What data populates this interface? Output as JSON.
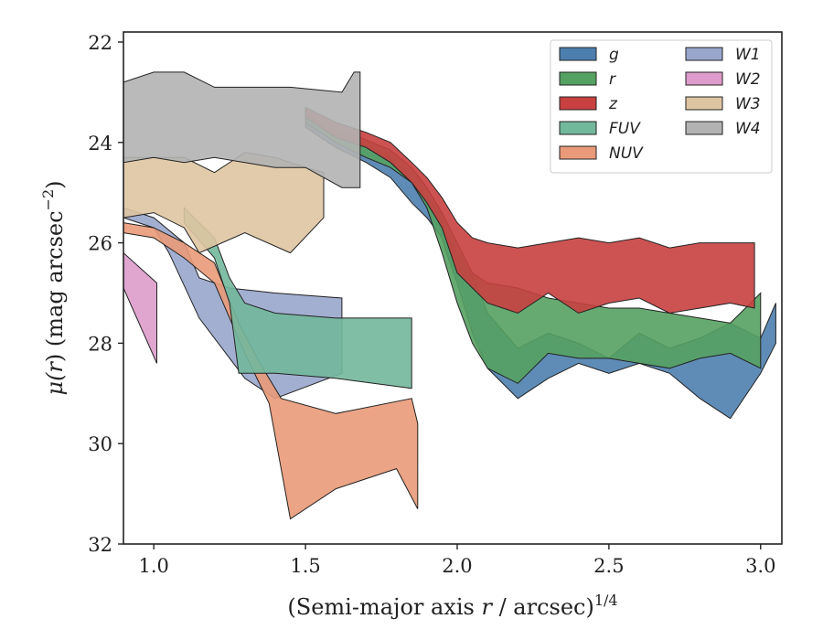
{
  "chart_data": {
    "type": "area",
    "xlabel": "(Semi-major axis r / arcsec)^{1/4}",
    "xlabel_parts": {
      "main": "(Semi-major axis ",
      "var": "r",
      "rest": " / arcsec)",
      "sup": "1/4"
    },
    "ylabel": "μ(r) (mag arcsec^{-2})",
    "ylabel_parts": {
      "mu": "μ(",
      "var": "r",
      "rest": ") (mag arcsec",
      "sup": "−2",
      "close": ")"
    },
    "xlim": [
      0.9,
      3.07
    ],
    "ylim": [
      32,
      21.8
    ],
    "y_inverted": true,
    "xticks": [
      1.0,
      1.5,
      2.0,
      2.5,
      3.0
    ],
    "xtick_labels": [
      "1.0",
      "1.5",
      "2.0",
      "2.5",
      "3.0"
    ],
    "yticks": [
      22,
      24,
      26,
      28,
      30,
      32
    ],
    "ytick_labels": [
      "22",
      "24",
      "26",
      "28",
      "30",
      "32"
    ],
    "grid": false,
    "legend_position": "top-right",
    "legend_columns": 2,
    "series": [
      {
        "name": "g",
        "label": "g",
        "color": "#4c7fae",
        "upper": [
          [
            1.5,
            23.4
          ],
          [
            1.6,
            23.8
          ],
          [
            1.7,
            24.05
          ],
          [
            1.78,
            24.3
          ],
          [
            1.85,
            24.8
          ],
          [
            1.9,
            25.1
          ],
          [
            1.95,
            25.4
          ],
          [
            1.97,
            25.9
          ],
          [
            2.0,
            26.2
          ],
          [
            2.05,
            26.6
          ],
          [
            2.1,
            27.4
          ],
          [
            2.2,
            28.1
          ],
          [
            2.3,
            27.8
          ],
          [
            2.4,
            28.0
          ],
          [
            2.5,
            28.3
          ],
          [
            2.6,
            27.8
          ],
          [
            2.7,
            28.1
          ],
          [
            2.8,
            27.9
          ],
          [
            2.9,
            27.6
          ],
          [
            3.0,
            27.9
          ],
          [
            3.05,
            27.2
          ]
        ],
        "lower": [
          [
            1.5,
            23.7
          ],
          [
            1.6,
            24.1
          ],
          [
            1.7,
            24.4
          ],
          [
            1.78,
            24.7
          ],
          [
            1.85,
            25.2
          ],
          [
            1.9,
            25.5
          ],
          [
            1.95,
            25.9
          ],
          [
            1.97,
            26.3
          ],
          [
            2.0,
            26.8
          ],
          [
            2.05,
            27.8
          ],
          [
            2.1,
            28.5
          ],
          [
            2.2,
            29.1
          ],
          [
            2.3,
            28.7
          ],
          [
            2.4,
            28.4
          ],
          [
            2.5,
            28.6
          ],
          [
            2.6,
            28.4
          ],
          [
            2.7,
            28.6
          ],
          [
            2.8,
            29.1
          ],
          [
            2.9,
            29.5
          ],
          [
            3.0,
            28.6
          ],
          [
            3.05,
            28.0
          ]
        ]
      },
      {
        "name": "r",
        "label": "r",
        "color": "#55a162",
        "upper": [
          [
            1.5,
            23.3
          ],
          [
            1.6,
            23.7
          ],
          [
            1.7,
            23.95
          ],
          [
            1.78,
            24.15
          ],
          [
            1.85,
            24.5
          ],
          [
            1.9,
            24.9
          ],
          [
            1.95,
            25.4
          ],
          [
            2.0,
            26.0
          ],
          [
            2.05,
            26.6
          ],
          [
            2.1,
            26.8
          ],
          [
            2.2,
            26.9
          ],
          [
            2.3,
            27.1
          ],
          [
            2.4,
            27.2
          ],
          [
            2.5,
            27.3
          ],
          [
            2.6,
            27.3
          ],
          [
            2.7,
            27.4
          ],
          [
            2.8,
            27.5
          ],
          [
            2.9,
            27.6
          ],
          [
            3.0,
            27.0
          ]
        ],
        "lower": [
          [
            1.5,
            23.6
          ],
          [
            1.6,
            24.0
          ],
          [
            1.7,
            24.3
          ],
          [
            1.78,
            24.5
          ],
          [
            1.85,
            24.8
          ],
          [
            1.9,
            25.3
          ],
          [
            1.95,
            26.2
          ],
          [
            2.0,
            27.2
          ],
          [
            2.05,
            28.0
          ],
          [
            2.1,
            28.5
          ],
          [
            2.2,
            28.8
          ],
          [
            2.3,
            28.2
          ],
          [
            2.4,
            28.3
          ],
          [
            2.5,
            28.3
          ],
          [
            2.6,
            28.4
          ],
          [
            2.7,
            28.5
          ],
          [
            2.8,
            28.3
          ],
          [
            2.9,
            28.2
          ],
          [
            3.0,
            28.5
          ]
        ]
      },
      {
        "name": "z",
        "label": "z",
        "color": "#c84040",
        "upper": [
          [
            1.5,
            23.3
          ],
          [
            1.6,
            23.6
          ],
          [
            1.7,
            23.8
          ],
          [
            1.78,
            24.0
          ],
          [
            1.85,
            24.4
          ],
          [
            1.9,
            24.7
          ],
          [
            1.95,
            25.1
          ],
          [
            2.0,
            25.6
          ],
          [
            2.05,
            25.9
          ],
          [
            2.1,
            26.0
          ],
          [
            2.2,
            26.1
          ],
          [
            2.3,
            26.0
          ],
          [
            2.4,
            25.9
          ],
          [
            2.5,
            26.0
          ],
          [
            2.6,
            25.9
          ],
          [
            2.7,
            26.1
          ],
          [
            2.8,
            26.0
          ],
          [
            2.9,
            26.0
          ],
          [
            2.98,
            26.0
          ]
        ],
        "lower": [
          [
            1.5,
            23.5
          ],
          [
            1.6,
            23.9
          ],
          [
            1.7,
            24.1
          ],
          [
            1.78,
            24.4
          ],
          [
            1.85,
            24.8
          ],
          [
            1.9,
            25.2
          ],
          [
            1.95,
            25.7
          ],
          [
            2.0,
            26.6
          ],
          [
            2.05,
            26.9
          ],
          [
            2.1,
            27.2
          ],
          [
            2.2,
            27.4
          ],
          [
            2.3,
            27.0
          ],
          [
            2.4,
            27.4
          ],
          [
            2.5,
            27.2
          ],
          [
            2.6,
            27.1
          ],
          [
            2.7,
            27.4
          ],
          [
            2.8,
            27.3
          ],
          [
            2.9,
            27.2
          ],
          [
            2.98,
            27.3
          ]
        ]
      },
      {
        "name": "FUV",
        "label": "FUV",
        "color": "#72b89c",
        "upper": [
          [
            1.1,
            25.3
          ],
          [
            1.2,
            25.9
          ],
          [
            1.25,
            26.7
          ],
          [
            1.3,
            27.2
          ],
          [
            1.4,
            27.4
          ],
          [
            1.6,
            27.5
          ],
          [
            1.85,
            27.5
          ]
        ],
        "lower": [
          [
            1.1,
            25.6
          ],
          [
            1.2,
            26.3
          ],
          [
            1.25,
            27.2
          ],
          [
            1.28,
            28.6
          ],
          [
            1.4,
            28.6
          ],
          [
            1.6,
            28.7
          ],
          [
            1.85,
            28.9
          ]
        ]
      },
      {
        "name": "NUV",
        "label": "NUV",
        "color": "#e99a78",
        "upper": [
          [
            0.9,
            25.6
          ],
          [
            1.0,
            25.7
          ],
          [
            1.1,
            26.0
          ],
          [
            1.2,
            26.4
          ],
          [
            1.28,
            27.6
          ],
          [
            1.35,
            28.4
          ],
          [
            1.42,
            29.1
          ],
          [
            1.6,
            29.4
          ],
          [
            1.85,
            29.1
          ],
          [
            1.87,
            29.6
          ]
        ],
        "lower": [
          [
            0.9,
            25.8
          ],
          [
            1.0,
            25.9
          ],
          [
            1.1,
            26.3
          ],
          [
            1.2,
            26.8
          ],
          [
            1.3,
            28.2
          ],
          [
            1.38,
            29.2
          ],
          [
            1.45,
            31.5
          ],
          [
            1.6,
            30.9
          ],
          [
            1.8,
            30.5
          ],
          [
            1.87,
            31.3
          ]
        ]
      },
      {
        "name": "W1",
        "label": "W1",
        "color": "#98a6cc",
        "upper": [
          [
            0.9,
            25.3
          ],
          [
            1.0,
            25.5
          ],
          [
            1.1,
            26.0
          ],
          [
            1.15,
            26.7
          ],
          [
            1.25,
            26.9
          ],
          [
            1.4,
            27.0
          ],
          [
            1.62,
            27.1
          ]
        ],
        "lower": [
          [
            0.9,
            25.5
          ],
          [
            1.0,
            25.7
          ],
          [
            1.05,
            26.2
          ],
          [
            1.15,
            27.5
          ],
          [
            1.3,
            28.7
          ],
          [
            1.4,
            29.1
          ],
          [
            1.62,
            28.6
          ]
        ]
      },
      {
        "name": "W2",
        "label": "W2",
        "color": "#dd9ccb",
        "upper": [
          [
            0.9,
            26.2
          ],
          [
            1.01,
            26.8
          ]
        ],
        "lower": [
          [
            0.9,
            26.9
          ],
          [
            1.01,
            28.4
          ]
        ]
      },
      {
        "name": "W3",
        "label": "W3",
        "color": "#dec5a1",
        "upper": [
          [
            0.9,
            24.3
          ],
          [
            1.0,
            24.3
          ],
          [
            1.1,
            24.3
          ],
          [
            1.2,
            24.6
          ],
          [
            1.3,
            24.2
          ],
          [
            1.4,
            24.3
          ],
          [
            1.5,
            24.5
          ],
          [
            1.56,
            24.6
          ]
        ],
        "lower": [
          [
            0.9,
            25.5
          ],
          [
            1.0,
            25.4
          ],
          [
            1.1,
            25.7
          ],
          [
            1.15,
            26.2
          ],
          [
            1.3,
            25.8
          ],
          [
            1.45,
            26.2
          ],
          [
            1.56,
            25.5
          ]
        ]
      },
      {
        "name": "W4",
        "label": "W4",
        "color": "#b2b2b2",
        "upper": [
          [
            0.9,
            22.8
          ],
          [
            1.0,
            22.6
          ],
          [
            1.1,
            22.6
          ],
          [
            1.2,
            22.9
          ],
          [
            1.3,
            22.9
          ],
          [
            1.45,
            22.9
          ],
          [
            1.62,
            23.0
          ],
          [
            1.66,
            22.6
          ],
          [
            1.68,
            22.6
          ]
        ],
        "lower": [
          [
            0.9,
            24.4
          ],
          [
            1.0,
            24.3
          ],
          [
            1.1,
            24.4
          ],
          [
            1.2,
            24.3
          ],
          [
            1.3,
            24.4
          ],
          [
            1.4,
            24.5
          ],
          [
            1.5,
            24.5
          ],
          [
            1.62,
            24.9
          ],
          [
            1.68,
            24.9
          ]
        ]
      }
    ]
  }
}
